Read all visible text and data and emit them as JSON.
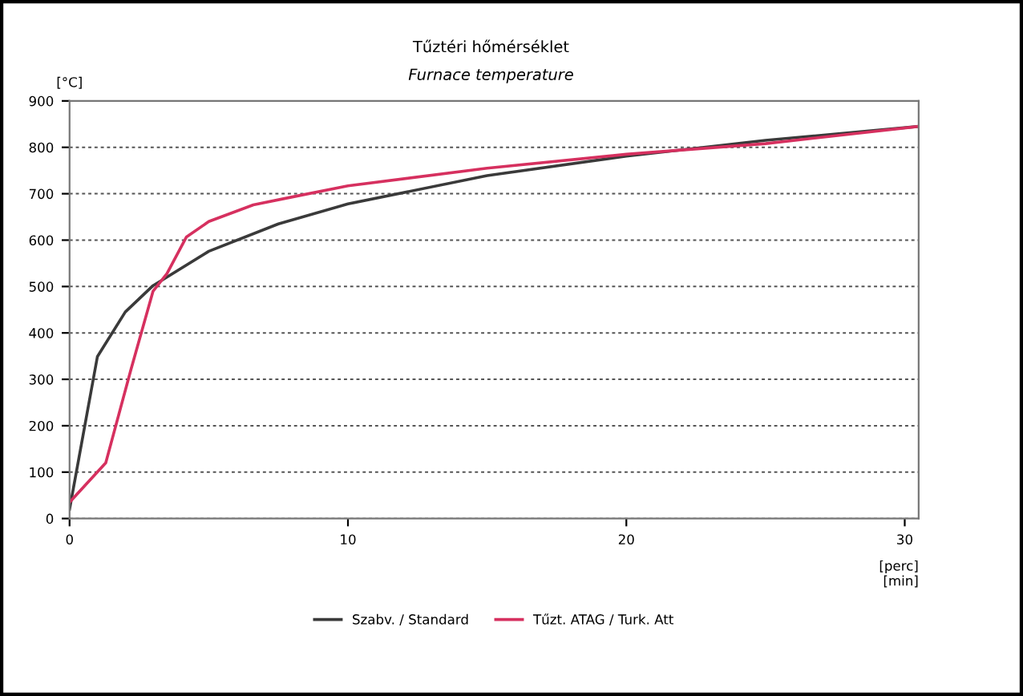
{
  "chart_data": {
    "type": "line",
    "title": "Tűztéri hőmérséklet",
    "subtitle": "Furnace temperature",
    "ylabel": "[°C]",
    "xlabel": "[perc]\n[min]",
    "series": [
      {
        "name": "Szabv. / Standard",
        "color": "#3a3a3a",
        "x": [
          0,
          1,
          2,
          3,
          5,
          7.5,
          10,
          15,
          20,
          25,
          30.5
        ],
        "values": [
          20,
          349,
          445,
          502,
          576,
          635,
          678,
          739,
          781,
          815,
          845
        ]
      },
      {
        "name": "Tűzt. ATAG / Turk. Att",
        "color": "#d6305f",
        "x": [
          0,
          1.3,
          2.2,
          3,
          3.5,
          4.2,
          5,
          6.6,
          8,
          10,
          15,
          20,
          25,
          30.5
        ],
        "values": [
          35,
          120,
          320,
          490,
          528,
          607,
          640,
          676,
          693,
          717,
          755,
          785,
          808,
          845
        ]
      }
    ],
    "xlim": [
      0,
      30.5
    ],
    "ylim": [
      0,
      900
    ],
    "xticks": [
      0,
      10,
      20,
      30
    ],
    "yticks": [
      0,
      100,
      200,
      300,
      400,
      500,
      600,
      700,
      800,
      900
    ],
    "grid": "y",
    "legend": "bottom",
    "marker": "none",
    "line_style": "solid"
  }
}
